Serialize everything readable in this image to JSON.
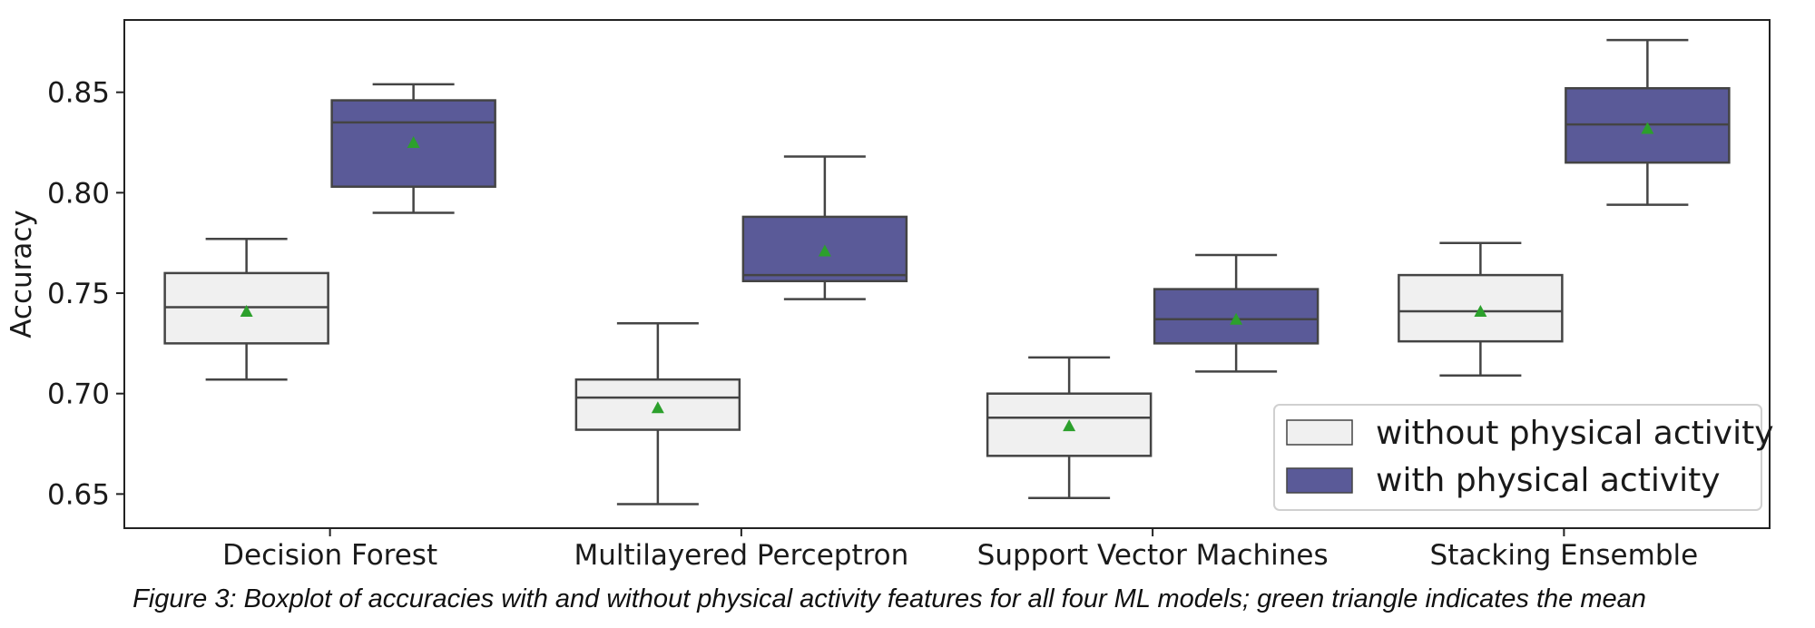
{
  "caption": "Figure 3: Boxplot of accuracies with and without physical activity features for all four ML models; green triangle indicates the mean",
  "chart_data": {
    "type": "boxplot",
    "ylabel": "Accuracy",
    "xlabel": "",
    "ylim": [
      0.633,
      0.886
    ],
    "yticks": [
      0.65,
      0.7,
      0.75,
      0.8,
      0.85
    ],
    "ytick_labels": [
      "0.65",
      "0.70",
      "0.75",
      "0.80",
      "0.85"
    ],
    "categories": [
      "Decision Forest",
      "Multilayered Perceptron",
      "Support Vector Machines",
      "Stacking Ensemble"
    ],
    "grid": false,
    "legend_position": "bottom-right",
    "mean_marker": "green triangle",
    "series": [
      {
        "name": "without physical activity",
        "color": "#f0f0f0",
        "boxes": [
          {
            "whislo": 0.707,
            "q1": 0.725,
            "med": 0.743,
            "q3": 0.76,
            "whishi": 0.777,
            "mean": 0.741
          },
          {
            "whislo": 0.645,
            "q1": 0.682,
            "med": 0.698,
            "q3": 0.707,
            "whishi": 0.735,
            "mean": 0.693
          },
          {
            "whislo": 0.648,
            "q1": 0.669,
            "med": 0.688,
            "q3": 0.7,
            "whishi": 0.718,
            "mean": 0.684
          },
          {
            "whislo": 0.709,
            "q1": 0.726,
            "med": 0.741,
            "q3": 0.759,
            "whishi": 0.775,
            "mean": 0.741
          }
        ]
      },
      {
        "name": "with physical activity",
        "color": "#5a5a98",
        "boxes": [
          {
            "whislo": 0.79,
            "q1": 0.803,
            "med": 0.835,
            "q3": 0.846,
            "whishi": 0.854,
            "mean": 0.825
          },
          {
            "whislo": 0.747,
            "q1": 0.756,
            "med": 0.759,
            "q3": 0.788,
            "whishi": 0.818,
            "mean": 0.771
          },
          {
            "whislo": 0.711,
            "q1": 0.725,
            "med": 0.737,
            "q3": 0.752,
            "whishi": 0.769,
            "mean": 0.737
          },
          {
            "whislo": 0.794,
            "q1": 0.815,
            "med": 0.834,
            "q3": 0.852,
            "whishi": 0.876,
            "mean": 0.832
          }
        ]
      }
    ],
    "colors": {
      "mean_marker": "#2ca02c",
      "line": "#444444"
    }
  }
}
